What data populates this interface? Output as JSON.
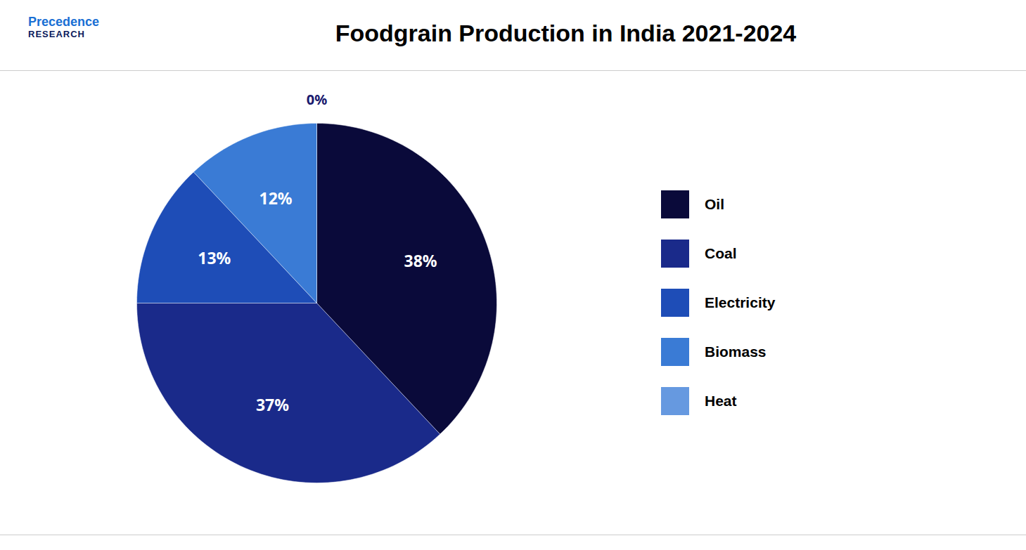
{
  "chart_data": {
    "type": "pie",
    "title": "Foodgrain Production in India 2021-2024",
    "categories": [
      "Oil",
      "Coal",
      "Electricity",
      "Biomass",
      "Heat"
    ],
    "values": [
      38,
      37,
      13,
      12,
      0
    ],
    "value_labels": [
      "38%",
      "37%",
      "13%",
      "12%",
      "0%"
    ],
    "colors": [
      "#0a0a3a",
      "#1a2a8a",
      "#1e4db7",
      "#3a7bd5",
      "#6699e0"
    ],
    "data_labels": true,
    "legend": "right",
    "annotations": [
      "Precedence",
      "RESEARCH"
    ]
  }
}
